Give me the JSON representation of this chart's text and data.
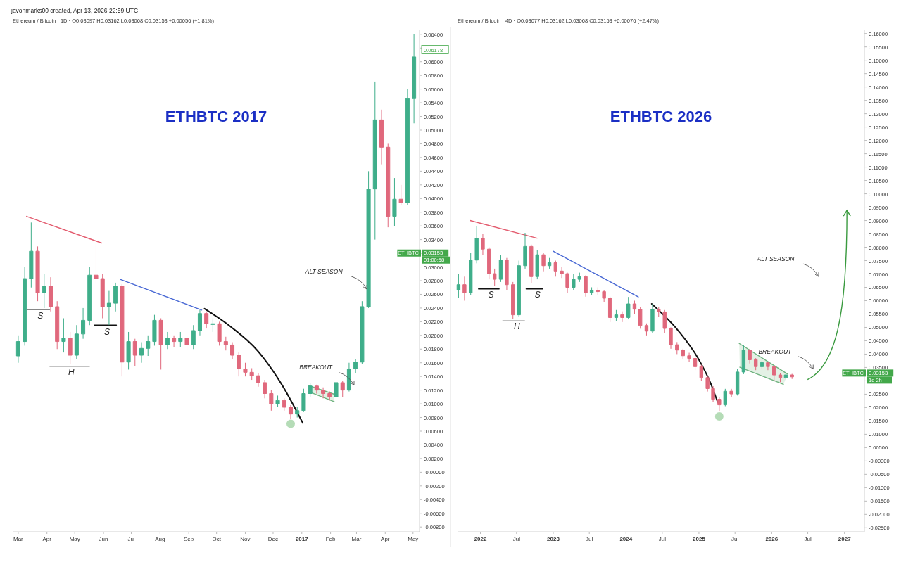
{
  "chart_data": [
    {
      "type": "candlestick",
      "title": "ETHBTC 2017",
      "subtitle": "Ethereum / Bitcoin · 1D · O0.03097 H0.03162 L0.03068 C0.03153 +0.00056 (+1.81%)",
      "xlim": [
        "2016-02-24",
        "2017-05-08"
      ],
      "ylim": [
        -0.0087,
        0.0647
      ],
      "xticks": [
        {
          "value": "2016-03-01",
          "label": "Mar"
        },
        {
          "value": "2016-04-01",
          "label": "Apr"
        },
        {
          "value": "2016-05-01",
          "label": "May"
        },
        {
          "value": "2016-06-01",
          "label": "Jun"
        },
        {
          "value": "2016-07-01",
          "label": "Jul"
        },
        {
          "value": "2016-08-01",
          "label": "Aug"
        },
        {
          "value": "2016-09-01",
          "label": "Sep"
        },
        {
          "value": "2016-10-01",
          "label": "Oct"
        },
        {
          "value": "2016-11-01",
          "label": "Nov"
        },
        {
          "value": "2016-12-01",
          "label": "Dec"
        },
        {
          "value": "2017-01-01",
          "label": "2017"
        },
        {
          "value": "2017-02-01",
          "label": "Feb"
        },
        {
          "value": "2017-03-01",
          "label": "Mar"
        },
        {
          "value": "2017-04-01",
          "label": "Apr"
        },
        {
          "value": "2017-05-01",
          "label": "May"
        }
      ],
      "yticks": [
        {
          "value": 0.064,
          "label": "0.06400"
        },
        {
          "value": 0.062,
          "label": null
        },
        {
          "value": 0.06,
          "label": "0.06000"
        },
        {
          "value": 0.058,
          "label": "0.05800"
        },
        {
          "value": 0.056,
          "label": "0.05600"
        },
        {
          "value": 0.054,
          "label": "0.05400"
        },
        {
          "value": 0.052,
          "label": "0.05200"
        },
        {
          "value": 0.05,
          "label": "0.05000"
        },
        {
          "value": 0.048,
          "label": "0.04800"
        },
        {
          "value": 0.046,
          "label": "0.04600"
        },
        {
          "value": 0.044,
          "label": "0.04400"
        },
        {
          "value": 0.042,
          "label": "0.04200"
        },
        {
          "value": 0.04,
          "label": "0.04000"
        },
        {
          "value": 0.038,
          "label": "0.03800"
        },
        {
          "value": 0.036,
          "label": "0.03600"
        },
        {
          "value": 0.034,
          "label": "0.03400"
        },
        {
          "value": 0.032,
          "label": null
        },
        {
          "value": 0.03,
          "label": "0.03000"
        },
        {
          "value": 0.028,
          "label": "0.02800"
        },
        {
          "value": 0.026,
          "label": "0.02600"
        },
        {
          "value": 0.024,
          "label": "0.02400"
        },
        {
          "value": 0.022,
          "label": "0.02200"
        },
        {
          "value": 0.02,
          "label": "0.02000"
        },
        {
          "value": 0.018,
          "label": "0.01800"
        },
        {
          "value": 0.016,
          "label": "0.01600"
        },
        {
          "value": 0.014,
          "label": "0.01400"
        },
        {
          "value": 0.012,
          "label": "0.01200"
        },
        {
          "value": 0.01,
          "label": "0.01000"
        },
        {
          "value": 0.008,
          "label": "0.00800"
        },
        {
          "value": 0.006,
          "label": "0.00600"
        },
        {
          "value": 0.004,
          "label": "0.00400"
        },
        {
          "value": 0.002,
          "label": "0.00200"
        },
        {
          "value": 0,
          "label": "-0.00000"
        },
        {
          "value": -0.002,
          "label": "-0.00200"
        },
        {
          "value": -0.004,
          "label": "-0.00400"
        },
        {
          "value": -0.006,
          "label": "-0.00600"
        },
        {
          "value": -0.008,
          "label": "-0.00800"
        }
      ],
      "x": [
        "2016-03-01",
        "2016-03-08",
        "2016-03-15",
        "2016-03-22",
        "2016-03-29",
        "2016-04-05",
        "2016-04-12",
        "2016-04-19",
        "2016-04-26",
        "2016-05-03",
        "2016-05-10",
        "2016-05-17",
        "2016-05-24",
        "2016-05-31",
        "2016-06-07",
        "2016-06-14",
        "2016-06-21",
        "2016-06-28",
        "2016-07-05",
        "2016-07-12",
        "2016-07-19",
        "2016-07-26",
        "2016-08-02",
        "2016-08-09",
        "2016-08-16",
        "2016-08-23",
        "2016-08-30",
        "2016-09-06",
        "2016-09-13",
        "2016-09-20",
        "2016-09-27",
        "2016-10-04",
        "2016-10-11",
        "2016-10-18",
        "2016-10-25",
        "2016-11-01",
        "2016-11-08",
        "2016-11-15",
        "2016-11-22",
        "2016-11-29",
        "2016-12-06",
        "2016-12-13",
        "2016-12-20",
        "2016-12-27",
        "2017-01-03",
        "2017-01-10",
        "2017-01-17",
        "2017-01-24",
        "2017-01-31",
        "2017-02-07",
        "2017-02-14",
        "2017-02-21",
        "2017-02-28",
        "2017-03-07",
        "2017-03-14",
        "2017-03-21",
        "2017-03-28",
        "2017-04-04",
        "2017-04-11",
        "2017-04-18",
        "2017-04-25",
        "2017-05-02"
      ],
      "ohlc": [
        [
          0.017,
          0.02,
          0.016,
          0.0191
        ],
        [
          0.0191,
          0.03,
          0.0185,
          0.0283
        ],
        [
          0.0283,
          0.0365,
          0.027,
          0.0323
        ],
        [
          0.0323,
          0.033,
          0.025,
          0.0262
        ],
        [
          0.0262,
          0.029,
          0.024,
          0.0272
        ],
        [
          0.0272,
          0.0285,
          0.0235,
          0.0242
        ],
        [
          0.0242,
          0.025,
          0.018,
          0.0191
        ],
        [
          0.0191,
          0.0225,
          0.0175,
          0.0196
        ],
        [
          0.0196,
          0.0205,
          0.0158,
          0.0171
        ],
        [
          0.0171,
          0.0215,
          0.0165,
          0.0202
        ],
        [
          0.0202,
          0.024,
          0.0195,
          0.0222
        ],
        [
          0.0222,
          0.03,
          0.0215,
          0.0288
        ],
        [
          0.0288,
          0.0335,
          0.0275,
          0.0283
        ],
        [
          0.0283,
          0.029,
          0.0225,
          0.0242
        ],
        [
          0.0242,
          0.0265,
          0.0215,
          0.0247
        ],
        [
          0.0247,
          0.0277,
          0.0235,
          0.0272
        ],
        [
          0.0272,
          0.0275,
          0.014,
          0.0161
        ],
        [
          0.0161,
          0.0205,
          0.015,
          0.0191
        ],
        [
          0.0191,
          0.0195,
          0.0155,
          0.0171
        ],
        [
          0.0171,
          0.019,
          0.016,
          0.0181
        ],
        [
          0.0181,
          0.02,
          0.017,
          0.0191
        ],
        [
          0.0191,
          0.023,
          0.0185,
          0.0222
        ],
        [
          0.0222,
          0.0225,
          0.015,
          0.0186
        ],
        [
          0.0186,
          0.0205,
          0.018,
          0.0196
        ],
        [
          0.0196,
          0.02,
          0.0183,
          0.0191
        ],
        [
          0.0191,
          0.0205,
          0.0183,
          0.0196
        ],
        [
          0.0196,
          0.02,
          0.0178,
          0.0186
        ],
        [
          0.0186,
          0.0215,
          0.018,
          0.0207
        ],
        [
          0.0207,
          0.0237,
          0.02,
          0.0232
        ],
        [
          0.0232,
          0.0235,
          0.021,
          0.0217
        ],
        [
          0.0217,
          0.0225,
          0.0205,
          0.0217
        ],
        [
          0.0217,
          0.022,
          0.0185,
          0.0191
        ],
        [
          0.0191,
          0.0198,
          0.0178,
          0.0186
        ],
        [
          0.0186,
          0.019,
          0.0165,
          0.0171
        ],
        [
          0.0171,
          0.0175,
          0.014,
          0.0151
        ],
        [
          0.0151,
          0.016,
          0.014,
          0.0146
        ],
        [
          0.0146,
          0.0152,
          0.0135,
          0.0141
        ],
        [
          0.0141,
          0.0145,
          0.0125,
          0.0131
        ],
        [
          0.0131,
          0.0135,
          0.0108,
          0.0115
        ],
        [
          0.0115,
          0.012,
          0.009,
          0.01
        ],
        [
          0.01,
          0.0112,
          0.0095,
          0.0105
        ],
        [
          0.0105,
          0.0108,
          0.009,
          0.0095
        ],
        [
          0.0095,
          0.0098,
          0.0078,
          0.0085
        ],
        [
          0.0085,
          0.0095,
          0.008,
          0.009
        ],
        [
          0.009,
          0.0122,
          0.0088,
          0.0115
        ],
        [
          0.0115,
          0.013,
          0.011,
          0.0126
        ],
        [
          0.0126,
          0.0128,
          0.0115,
          0.012
        ],
        [
          0.012,
          0.0124,
          0.0108,
          0.0115
        ],
        [
          0.0115,
          0.0118,
          0.0105,
          0.011
        ],
        [
          0.011,
          0.0135,
          0.0108,
          0.0131
        ],
        [
          0.0131,
          0.0133,
          0.011,
          0.012
        ],
        [
          0.012,
          0.016,
          0.0118,
          0.0151
        ],
        [
          0.0151,
          0.0165,
          0.0145,
          0.0161
        ],
        [
          0.0161,
          0.025,
          0.0158,
          0.0242
        ],
        [
          0.0242,
          0.044,
          0.024,
          0.0414
        ],
        [
          0.0414,
          0.0571,
          0.034,
          0.0515
        ],
        [
          0.0515,
          0.053,
          0.045,
          0.0475
        ],
        [
          0.0475,
          0.048,
          0.0358,
          0.0374
        ],
        [
          0.0374,
          0.043,
          0.036,
          0.0399
        ],
        [
          0.0399,
          0.042,
          0.039,
          0.0394
        ],
        [
          0.0394,
          0.056,
          0.039,
          0.0546
        ],
        [
          0.0546,
          0.064,
          0.051,
          0.0607
        ]
      ],
      "series": [
        {
          "type": "line",
          "color": "#e35b6e",
          "x": [
            "2016-03-10",
            "2016-05-30"
          ],
          "values": [
            0.0374,
            0.0335
          ]
        },
        {
          "type": "line",
          "color": "#4767d4",
          "x": [
            "2016-06-19",
            "2016-09-15"
          ],
          "values": [
            0.0282,
            0.0237
          ]
        },
        {
          "type": "line",
          "color": "#111111",
          "x": [
            "2016-09-18",
            "2016-10-16",
            "2016-11-14",
            "2016-12-10",
            "2017-01-02"
          ],
          "values": [
            0.0239,
            0.0213,
            0.0178,
            0.0129,
            0.0072
          ]
        },
        {
          "type": "line",
          "color": "#111111",
          "x": [
            "2016-03-11",
            "2016-04-04"
          ],
          "values": [
            0.0238,
            0.0238
          ]
        },
        {
          "type": "line",
          "color": "#111111",
          "x": [
            "2016-04-04",
            "2016-05-17"
          ],
          "values": [
            0.0155,
            0.0155
          ]
        },
        {
          "type": "line",
          "color": "#111111",
          "x": [
            "2016-05-22",
            "2016-06-15"
          ],
          "values": [
            0.0215,
            0.0215
          ]
        },
        {
          "type": "line",
          "color": "#6fb27f",
          "x": [
            "2017-01-08",
            "2017-02-05"
          ],
          "values": [
            0.0127,
            0.0114
          ]
        },
        {
          "type": "line",
          "color": "#6fb27f",
          "x": [
            "2017-01-12",
            "2017-02-05"
          ],
          "values": [
            0.0116,
            0.0103
          ]
        }
      ],
      "annotations": [
        "javonmarks00 created, Apr 13, 2026 22:59 UTC",
        "S",
        "H",
        "S",
        "ALT SEASON",
        "BREAKOUT",
        "0.06178",
        "ETHBTC",
        "0.03153",
        "01:00:58"
      ]
    },
    {
      "type": "candlestick",
      "title": "ETHBTC 2026",
      "subtitle": "Ethereum / Bitcoin · 4D · O0.03077 H0.03162 L0.03068 C0.03153 +0.00076 (+2.47%)",
      "xlim": [
        "2021-09-08",
        "2027-04-11"
      ],
      "ylim": [
        -0.0265,
        0.1615
      ],
      "xticks": [
        {
          "value": "2022-01-01",
          "label": "2022"
        },
        {
          "value": "2022-07-01",
          "label": "Jul"
        },
        {
          "value": "2023-01-01",
          "label": "2023"
        },
        {
          "value": "2023-07-01",
          "label": "Jul"
        },
        {
          "value": "2024-01-01",
          "label": "2024"
        },
        {
          "value": "2024-07-01",
          "label": "Jul"
        },
        {
          "value": "2025-01-01",
          "label": "2025"
        },
        {
          "value": "2025-07-01",
          "label": "Jul"
        },
        {
          "value": "2026-01-01",
          "label": "2026"
        },
        {
          "value": "2026-07-01",
          "label": "Jul"
        },
        {
          "value": "2027-01-01",
          "label": "2027"
        }
      ],
      "yticks": [
        {
          "value": 0.16,
          "label": "0.16000"
        },
        {
          "value": 0.155,
          "label": "0.15500"
        },
        {
          "value": 0.15,
          "label": "0.15000"
        },
        {
          "value": 0.145,
          "label": "0.14500"
        },
        {
          "value": 0.14,
          "label": "0.14000"
        },
        {
          "value": 0.135,
          "label": "0.13500"
        },
        {
          "value": 0.13,
          "label": "0.13000"
        },
        {
          "value": 0.125,
          "label": "0.12500"
        },
        {
          "value": 0.12,
          "label": "0.12000"
        },
        {
          "value": 0.115,
          "label": "0.11500"
        },
        {
          "value": 0.11,
          "label": "0.11000"
        },
        {
          "value": 0.105,
          "label": "0.10500"
        },
        {
          "value": 0.1,
          "label": "0.10000"
        },
        {
          "value": 0.095,
          "label": "0.09500"
        },
        {
          "value": 0.09,
          "label": "0.09000"
        },
        {
          "value": 0.085,
          "label": "0.08500"
        },
        {
          "value": 0.08,
          "label": "0.08000"
        },
        {
          "value": 0.075,
          "label": "0.07500"
        },
        {
          "value": 0.07,
          "label": "0.07000"
        },
        {
          "value": 0.065,
          "label": "0.06500"
        },
        {
          "value": 0.06,
          "label": "0.06000"
        },
        {
          "value": 0.055,
          "label": "0.05500"
        },
        {
          "value": 0.05,
          "label": "0.05000"
        },
        {
          "value": 0.045,
          "label": "0.04500"
        },
        {
          "value": 0.04,
          "label": "0.04000"
        },
        {
          "value": 0.035,
          "label": "0.03500"
        },
        {
          "value": 0.03,
          "label": null
        },
        {
          "value": 0.025,
          "label": "0.02500"
        },
        {
          "value": 0.02,
          "label": "0.02000"
        },
        {
          "value": 0.015,
          "label": "0.01500"
        },
        {
          "value": 0.01,
          "label": "0.01000"
        },
        {
          "value": 0.005,
          "label": "0.00500"
        },
        {
          "value": 0,
          "label": "-0.00000"
        },
        {
          "value": -0.005,
          "label": "-0.00500"
        },
        {
          "value": -0.01,
          "label": "-0.01000"
        },
        {
          "value": -0.015,
          "label": "-0.01500"
        },
        {
          "value": -0.02,
          "label": "-0.02000"
        },
        {
          "value": -0.025,
          "label": "-0.02500"
        }
      ],
      "x": [
        "2021-09-13",
        "2021-10-13",
        "2021-11-13",
        "2021-12-13",
        "2022-01-13",
        "2022-02-13",
        "2022-03-13",
        "2022-04-13",
        "2022-05-13",
        "2022-06-13",
        "2022-07-13",
        "2022-08-13",
        "2022-09-13",
        "2022-10-13",
        "2022-11-13",
        "2022-12-13",
        "2023-01-13",
        "2023-02-13",
        "2023-03-13",
        "2023-04-13",
        "2023-05-13",
        "2023-06-13",
        "2023-07-13",
        "2023-08-13",
        "2023-09-13",
        "2023-10-13",
        "2023-11-13",
        "2023-12-13",
        "2024-01-13",
        "2024-02-13",
        "2024-03-13",
        "2024-04-13",
        "2024-05-13",
        "2024-06-13",
        "2024-07-13",
        "2024-08-13",
        "2024-09-13",
        "2024-10-13",
        "2024-11-13",
        "2024-12-13",
        "2025-01-13",
        "2025-02-13",
        "2025-03-13",
        "2025-04-13",
        "2025-05-13",
        "2025-06-13",
        "2025-07-13",
        "2025-08-13",
        "2025-09-13",
        "2025-10-13",
        "2025-11-13",
        "2025-12-13",
        "2026-01-13",
        "2026-02-13",
        "2026-03-13",
        "2026-04-13"
      ],
      "ohlc": [
        [
          0.064,
          0.07,
          0.061,
          0.066
        ],
        [
          0.066,
          0.069,
          0.06,
          0.0629
        ],
        [
          0.0629,
          0.078,
          0.062,
          0.0752
        ],
        [
          0.0752,
          0.088,
          0.074,
          0.0834
        ],
        [
          0.0834,
          0.085,
          0.077,
          0.0793
        ],
        [
          0.0793,
          0.08,
          0.068,
          0.0701
        ],
        [
          0.0701,
          0.072,
          0.0655,
          0.068
        ],
        [
          0.068,
          0.077,
          0.067,
          0.0752
        ],
        [
          0.0752,
          0.076,
          0.064,
          0.066
        ],
        [
          0.066,
          0.067,
          0.0532,
          0.0547
        ],
        [
          0.0547,
          0.075,
          0.054,
          0.0731
        ],
        [
          0.0731,
          0.0854,
          0.072,
          0.0803
        ],
        [
          0.0803,
          0.081,
          0.0665,
          0.069
        ],
        [
          0.069,
          0.079,
          0.068,
          0.0772
        ],
        [
          0.0772,
          0.078,
          0.071,
          0.0731
        ],
        [
          0.0731,
          0.076,
          0.072,
          0.0742
        ],
        [
          0.0742,
          0.075,
          0.069,
          0.0711
        ],
        [
          0.0711,
          0.0725,
          0.0685,
          0.0701
        ],
        [
          0.0701,
          0.0705,
          0.063,
          0.065
        ],
        [
          0.065,
          0.07,
          0.064,
          0.068
        ],
        [
          0.068,
          0.0705,
          0.067,
          0.069
        ],
        [
          0.069,
          0.0695,
          0.0615,
          0.0629
        ],
        [
          0.0629,
          0.065,
          0.062,
          0.0639
        ],
        [
          0.0639,
          0.065,
          0.062,
          0.0634
        ],
        [
          0.0634,
          0.064,
          0.0595,
          0.0609
        ],
        [
          0.0609,
          0.0615,
          0.052,
          0.0537
        ],
        [
          0.0537,
          0.0565,
          0.0525,
          0.0547
        ],
        [
          0.0547,
          0.056,
          0.052,
          0.0537
        ],
        [
          0.0537,
          0.0614,
          0.053,
          0.0588
        ],
        [
          0.0588,
          0.06,
          0.055,
          0.0568
        ],
        [
          0.0568,
          0.0575,
          0.0495,
          0.0507
        ],
        [
          0.0507,
          0.0515,
          0.047,
          0.0486
        ],
        [
          0.0486,
          0.0588,
          0.048,
          0.0568
        ],
        [
          0.0568,
          0.0575,
          0.054,
          0.0558
        ],
        [
          0.0558,
          0.0565,
          0.048,
          0.0496
        ],
        [
          0.0496,
          0.05,
          0.042,
          0.0435
        ],
        [
          0.0435,
          0.0445,
          0.04,
          0.0415
        ],
        [
          0.0415,
          0.042,
          0.038,
          0.0394
        ],
        [
          0.0394,
          0.0405,
          0.037,
          0.0384
        ],
        [
          0.0384,
          0.039,
          0.034,
          0.0353
        ],
        [
          0.0353,
          0.036,
          0.03,
          0.0312
        ],
        [
          0.0312,
          0.032,
          0.026,
          0.0271
        ],
        [
          0.0271,
          0.028,
          0.022,
          0.0231
        ],
        [
          0.0231,
          0.024,
          0.0185,
          0.021
        ],
        [
          0.021,
          0.027,
          0.0205,
          0.0261
        ],
        [
          0.0261,
          0.027,
          0.024,
          0.0251
        ],
        [
          0.0251,
          0.0345,
          0.0245,
          0.0333
        ],
        [
          0.0333,
          0.0435,
          0.0325,
          0.0415
        ],
        [
          0.0415,
          0.042,
          0.0365,
          0.0379
        ],
        [
          0.0379,
          0.0385,
          0.034,
          0.0353
        ],
        [
          0.0353,
          0.0375,
          0.0345,
          0.0368
        ],
        [
          0.0368,
          0.0372,
          0.034,
          0.0353
        ],
        [
          0.0353,
          0.0358,
          0.03,
          0.0322
        ],
        [
          0.0322,
          0.0328,
          0.0295,
          0.0312
        ],
        [
          0.0312,
          0.033,
          0.0305,
          0.0322
        ],
        [
          0.0322,
          0.0326,
          0.0307,
          0.0315
        ]
      ],
      "series": [
        {
          "type": "line",
          "color": "#e35b6e",
          "x": [
            "2021-11-10",
            "2022-10-12"
          ],
          "values": [
            0.09,
            0.0834
          ]
        },
        {
          "type": "line",
          "color": "#4767d4",
          "x": [
            "2023-01-01",
            "2024-03-03"
          ],
          "values": [
            0.0785,
            0.0614
          ]
        },
        {
          "type": "line",
          "color": "#111111",
          "x": [
            "2024-05-09",
            "2024-09-21",
            "2024-12-28",
            "2025-02-28",
            "2025-04-05"
          ],
          "values": [
            0.0588,
            0.0486,
            0.0384,
            0.0292,
            0.022
          ]
        },
        {
          "type": "line",
          "color": "#111111",
          "x": [
            "2021-12-22",
            "2022-04-05"
          ],
          "values": [
            0.0644,
            0.0644
          ]
        },
        {
          "type": "line",
          "color": "#111111",
          "x": [
            "2022-04-22",
            "2022-08-11"
          ],
          "values": [
            0.0524,
            0.0524
          ]
        },
        {
          "type": "line",
          "color": "#111111",
          "x": [
            "2022-08-18",
            "2022-11-10"
          ],
          "values": [
            0.0644,
            0.0644
          ]
        },
        {
          "type": "line",
          "color": "#6fb27f",
          "x": [
            "2025-07-22",
            "2026-03-22"
          ],
          "values": [
            0.044,
            0.0325
          ]
        },
        {
          "type": "line",
          "color": "#6fb27f",
          "x": [
            "2025-07-25",
            "2026-03-01"
          ],
          "values": [
            0.0351,
            0.0287
          ]
        }
      ],
      "annotations": [
        "S",
        "H",
        "S",
        "ALT SEASON",
        "BREAKOUT",
        "ETHBTC",
        "0.03153",
        "1d 2h"
      ]
    }
  ]
}
